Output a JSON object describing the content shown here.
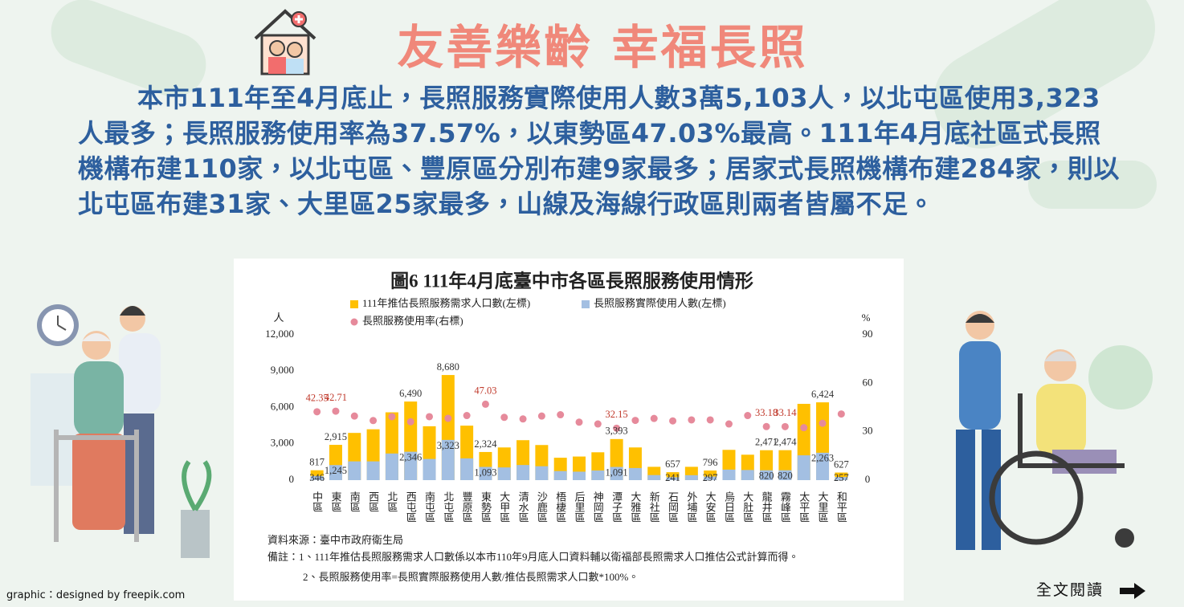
{
  "header": {
    "title": "友善樂齡 幸福長照"
  },
  "paragraph": "本市111年至4月底止，長照服務實際使用人數3萬5,103人，以北屯區使用3,323人最多；長照服務使用率為37.57%，以東勢區47.03%最高。111年4月底社區式長照機構布建110家，以北屯區、豐原區分別布建9家最多；居家式長照機構布建284家，則以北屯區布建31家、大里區25家最多，山線及海線行政區則兩者皆屬不足。",
  "chart_data": {
    "type": "combo",
    "title": "圖6 111年4月底臺中市各區長照服務使用情形",
    "barmode": "overlay",
    "y_label": "人",
    "y2_label": "%",
    "categories": [
      "中區",
      "東區",
      "南區",
      "西區",
      "北區",
      "西屯區",
      "南屯區",
      "北屯區",
      "豐原區",
      "東勢區",
      "大甲區",
      "清水區",
      "沙鹿區",
      "梧棲區",
      "后里區",
      "神岡區",
      "潭子區",
      "大雅區",
      "新社區",
      "石岡區",
      "外埔區",
      "大安區",
      "烏日區",
      "大肚區",
      "龍井區",
      "霧峰區",
      "太平區",
      "大里區",
      "和平區"
    ],
    "series": [
      {
        "name": "111年推估長照服務需求人口數(左標)",
        "type": "bar",
        "color": "#ffc000",
        "values": [
          817,
          2915,
          3900,
          4200,
          5600,
          6490,
          4450,
          8680,
          4500,
          2324,
          2700,
          3300,
          2900,
          1850,
          1950,
          2300,
          3393,
          2700,
          1100,
          657,
          1100,
          796,
          2500,
          2100,
          2471,
          2474,
          6300,
          6424,
          627
        ],
        "value_labels": [
          "817",
          "2,915",
          null,
          null,
          null,
          "6,490",
          null,
          "8,680",
          null,
          "2,324",
          null,
          null,
          null,
          null,
          null,
          null,
          "3,393",
          null,
          null,
          "657",
          null,
          "796",
          null,
          null,
          "2,471",
          "2,474",
          null,
          "6,424",
          "627"
        ]
      },
      {
        "name": "長照服務實際使用人數(左標)",
        "type": "bar",
        "color": "#a3bfe2",
        "values": [
          346,
          1245,
          1550,
          1550,
          2200,
          2346,
          1750,
          3323,
          1800,
          1093,
          1050,
          1250,
          1150,
          750,
          700,
          800,
          1091,
          1000,
          420,
          241,
          410,
          297,
          870,
          840,
          820,
          820,
          2050,
          2263,
          257
        ],
        "value_labels": [
          "346",
          "1,245",
          null,
          null,
          null,
          "2,346",
          null,
          "3,323",
          null,
          "1,093",
          null,
          null,
          null,
          null,
          null,
          null,
          "1,091",
          null,
          null,
          "241",
          null,
          "297",
          null,
          null,
          "820",
          "820",
          null,
          "2,263",
          "257"
        ]
      },
      {
        "name": "長照服務使用率(右標)",
        "type": "scatter",
        "axis": "y2",
        "color": "#e68a9b",
        "values": [
          42.35,
          42.71,
          39.7,
          36.9,
          39.3,
          36.15,
          39.3,
          38.28,
          40,
          47.03,
          38.9,
          37.9,
          39.7,
          40.5,
          35.9,
          34.8,
          32.15,
          37,
          38.2,
          36.7,
          37.3,
          37.3,
          34.8,
          40,
          33.18,
          33.14,
          32.5,
          35.23,
          40.99
        ],
        "value_labels": [
          "42.35",
          "42.71",
          null,
          null,
          null,
          null,
          null,
          null,
          null,
          "47.03",
          null,
          null,
          null,
          null,
          null,
          null,
          "32.15",
          null,
          null,
          null,
          null,
          null,
          null,
          null,
          "33.18",
          "33.14",
          null,
          null,
          null
        ]
      }
    ],
    "ylim": [
      0,
      12000
    ],
    "yticks": [
      0,
      {
        "value": 3000,
        "label": "3,000"
      },
      {
        "value": 6000,
        "label": "6,000"
      },
      {
        "value": 9000,
        "label": "9,000"
      },
      {
        "value": 12000,
        "label": "12,000"
      }
    ],
    "y2lim": [
      0,
      90
    ],
    "y2ticks": [
      0,
      30,
      60,
      90
    ],
    "grid": false,
    "source": "資料來源：臺中市政府衛生局",
    "notes": [
      "備註：1、111年推估長照服務需求人口數係以本市110年9月底人口資料輔以衛福部長照需求人口推估公式計算而得。",
      "2、長照服務使用率=長照實際服務使用人數/推估長照需求人口數*100%。"
    ]
  },
  "credit": "graphic：designed by freepik.com",
  "read_more": "全文閱讀"
}
